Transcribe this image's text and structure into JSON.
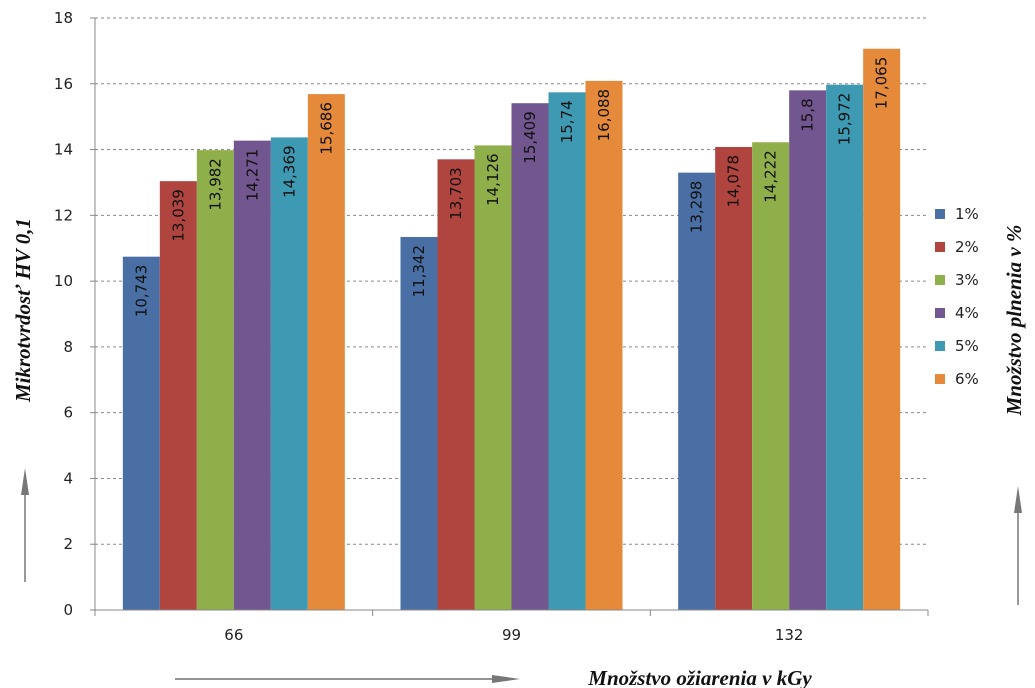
{
  "chart_data": {
    "type": "bar",
    "categories": [
      "66",
      "99",
      "132"
    ],
    "series": [
      {
        "name": "1%",
        "color": "#4a6fa5",
        "values": [
          10.743,
          11.342,
          13.298
        ],
        "labels": [
          "10,743",
          "11,342",
          "13,298"
        ]
      },
      {
        "name": "2%",
        "color": "#b0443f",
        "values": [
          13.039,
          13.703,
          14.078
        ],
        "labels": [
          "13,039",
          "13,703",
          "14,078"
        ]
      },
      {
        "name": "3%",
        "color": "#8faf4a",
        "values": [
          13.982,
          14.126,
          14.222
        ],
        "labels": [
          "13,982",
          "14,126",
          "14,222"
        ]
      },
      {
        "name": "4%",
        "color": "#72568f",
        "values": [
          14.271,
          15.409,
          15.8
        ],
        "labels": [
          "14,271",
          "15,409",
          "15,8"
        ]
      },
      {
        "name": "5%",
        "color": "#3d9ab2",
        "values": [
          14.369,
          15.74,
          15.972
        ],
        "labels": [
          "14,369",
          "15,74",
          "15,972"
        ]
      },
      {
        "name": "6%",
        "color": "#e48a3a",
        "values": [
          15.686,
          16.088,
          17.065
        ],
        "labels": [
          "15,686",
          "16,088",
          "17,065"
        ]
      }
    ],
    "ylim": [
      0,
      18
    ],
    "yticks": [
      "0",
      "2",
      "4",
      "6",
      "8",
      "10",
      "12",
      "14",
      "16",
      "18"
    ],
    "xlabel": "Množstvo ožiarenia v kGy",
    "ylabel": "Mikrotvrdosť HV 0,1",
    "legend_title": "Množstvo plnenia v %",
    "legend_position": "right",
    "grid": "horizontal dashed"
  }
}
